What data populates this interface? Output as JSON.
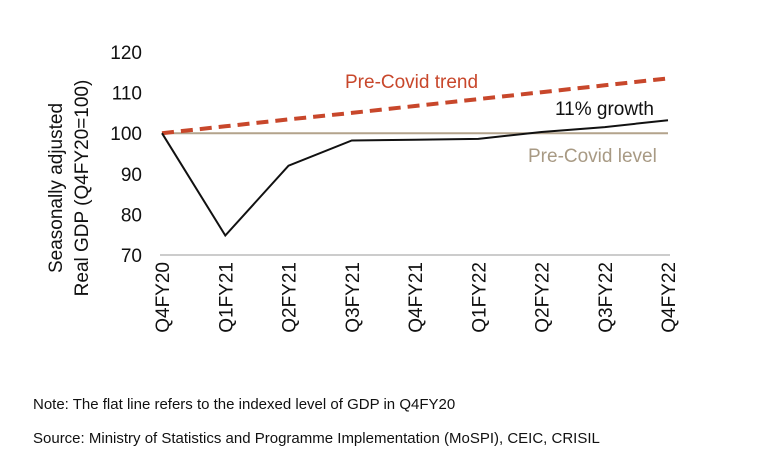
{
  "chart_data": {
    "type": "line",
    "ylabel_line1": "Seasonally adjusted",
    "ylabel_line2": "Real GDP (Q4FY20=100)",
    "ylim": [
      70,
      120
    ],
    "yticks": [
      70,
      80,
      90,
      100,
      110,
      120
    ],
    "categories": [
      "Q4FY20",
      "Q1FY21",
      "Q2FY21",
      "Q3FY21",
      "Q4FY21",
      "Q1FY22",
      "Q2FY22",
      "Q3FY22",
      "Q4FY22"
    ],
    "series": [
      {
        "name": "11% growth",
        "color": "#111111",
        "style": "solid",
        "values": [
          100,
          74.8,
          92.0,
          98.2,
          98.4,
          98.6,
          100.3,
          101.5,
          103.2
        ]
      },
      {
        "name": "Pre-Covid trend",
        "color": "#c8472b",
        "style": "dashed",
        "values": [
          100,
          101.7,
          103.4,
          105.0,
          106.7,
          108.4,
          110.1,
          111.8,
          113.5
        ]
      },
      {
        "name": "Pre-Covid level",
        "color": "#b3a38c",
        "style": "solid",
        "values": [
          100,
          100,
          100,
          100,
          100,
          100,
          100,
          100,
          100
        ]
      }
    ],
    "grid": false
  },
  "note": "Note: The flat line refers to the indexed level of GDP in Q4FY20",
  "source": "Source: Ministry of Statistics and Programme Implementation (MoSPI), CEIC, CRISIL"
}
